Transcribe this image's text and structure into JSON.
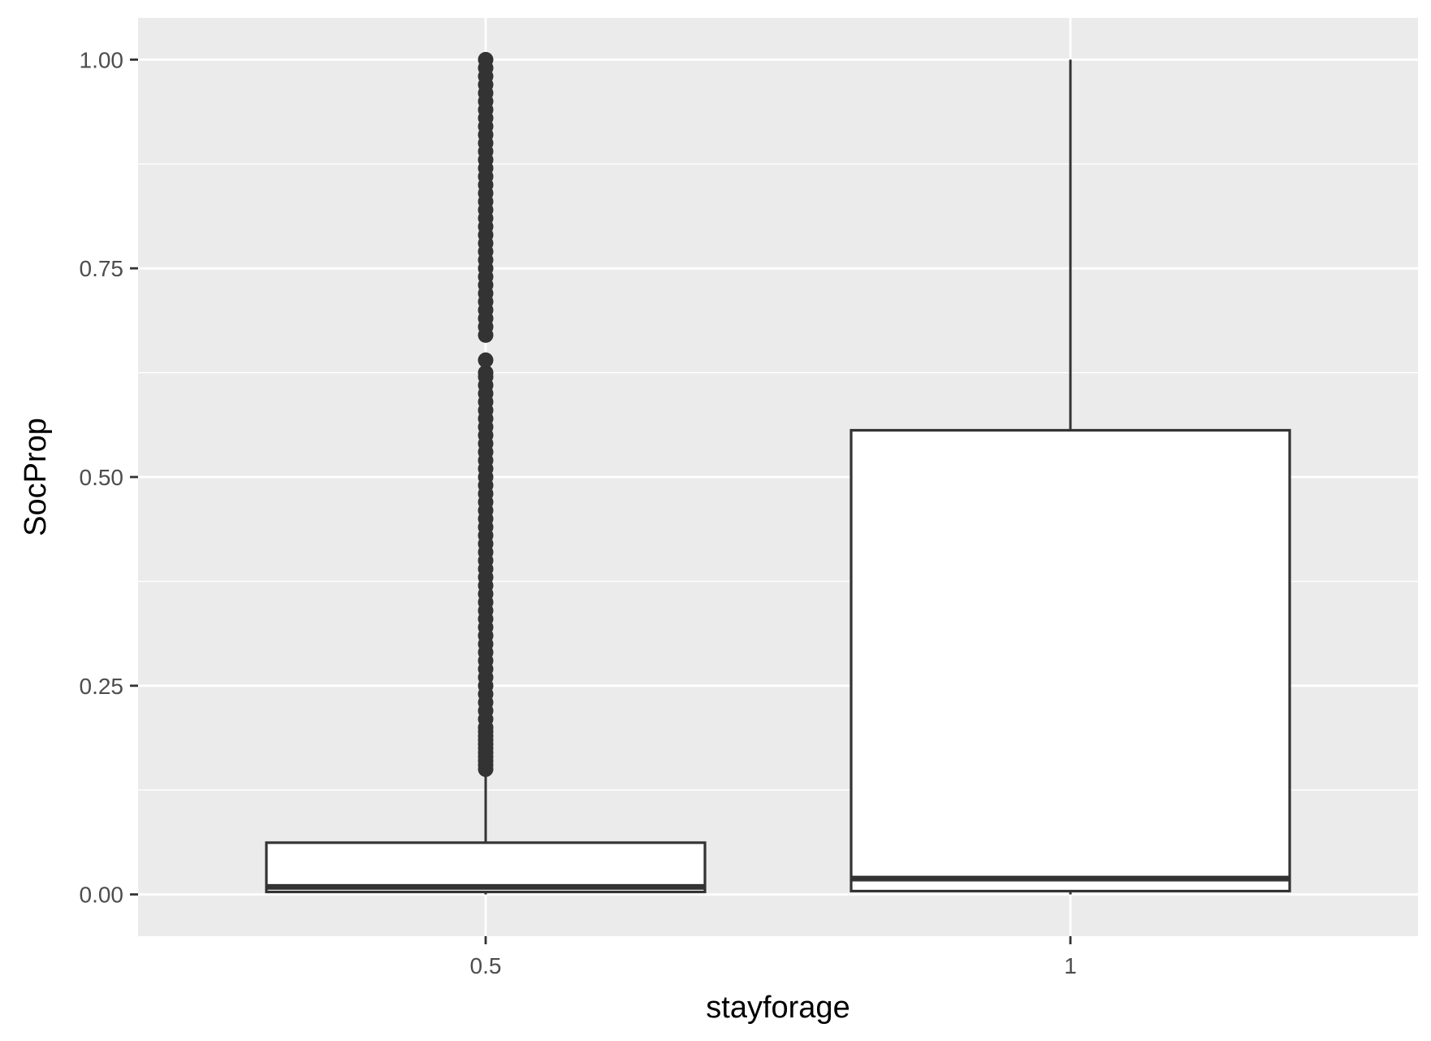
{
  "chart_data": {
    "type": "boxplot",
    "title": "",
    "xlabel": "stayforage",
    "ylabel": "SocProp",
    "categories": [
      "0.5",
      "1"
    ],
    "ylim": [
      -0.05,
      1.05
    ],
    "y_ticks": [
      0.0,
      0.25,
      0.5,
      0.75,
      1.0
    ],
    "y_tick_labels": [
      "0.00",
      "0.25",
      "0.50",
      "0.75",
      "1.00"
    ],
    "grid": true,
    "legend": "none",
    "boxes": [
      {
        "category": "0.5",
        "whisker_low": 0.0,
        "q1": 0.003,
        "median": 0.009,
        "q3": 0.062,
        "whisker_high": 0.145,
        "outliers": [
          0.15,
          0.155,
          0.16,
          0.165,
          0.17,
          0.175,
          0.18,
          0.185,
          0.19,
          0.195,
          0.2,
          0.21,
          0.22,
          0.23,
          0.24,
          0.25,
          0.26,
          0.27,
          0.28,
          0.29,
          0.3,
          0.31,
          0.32,
          0.33,
          0.34,
          0.35,
          0.36,
          0.37,
          0.38,
          0.39,
          0.4,
          0.41,
          0.42,
          0.43,
          0.44,
          0.45,
          0.46,
          0.47,
          0.48,
          0.49,
          0.5,
          0.51,
          0.52,
          0.53,
          0.54,
          0.55,
          0.56,
          0.57,
          0.58,
          0.59,
          0.6,
          0.61,
          0.62,
          0.625,
          0.64,
          0.67,
          0.68,
          0.69,
          0.7,
          0.71,
          0.72,
          0.73,
          0.74,
          0.75,
          0.76,
          0.77,
          0.78,
          0.79,
          0.8,
          0.81,
          0.82,
          0.83,
          0.84,
          0.85,
          0.86,
          0.87,
          0.88,
          0.89,
          0.9,
          0.91,
          0.92,
          0.93,
          0.94,
          0.95,
          0.96,
          0.97,
          0.98,
          0.99,
          1.0
        ]
      },
      {
        "category": "1",
        "whisker_low": 0.0,
        "q1": 0.004,
        "median": 0.019,
        "q3": 0.556,
        "whisker_high": 1.0,
        "outliers": []
      }
    ],
    "colors": {
      "panel_background": "#ebebeb",
      "gridline": "#ffffff",
      "box_fill": "#ffffff",
      "box_stroke": "#333333",
      "outlier": "#333333",
      "tick_label": "#4d4d4d",
      "axis_title": "#000000"
    }
  }
}
